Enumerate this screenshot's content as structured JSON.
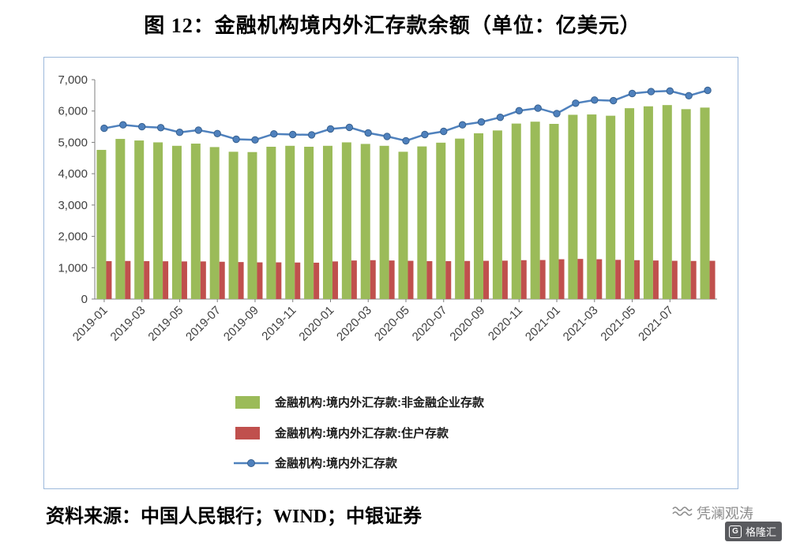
{
  "title": "图 12：金融机构境内外汇存款余额（单位：亿美元）",
  "source_note": "资料来源：中国人民银行；WIND；中银证券",
  "watermark": {
    "text": "凭澜观涛",
    "logo_text": "格隆汇",
    "logo_letter": "G"
  },
  "colors": {
    "green": "#9BBB59",
    "red": "#C0504D",
    "blue": "#4F81BD",
    "axis": "#7f7f7f",
    "border": "#9DB9DC"
  },
  "chart_data": {
    "type": "combo_bar_line",
    "title": "图 12：金融机构境内外汇存款余额（单位：亿美元）",
    "xlabel": "",
    "ylabel": "",
    "ylim": [
      0,
      7000
    ],
    "yticks": [
      0,
      1000,
      2000,
      3000,
      4000,
      5000,
      6000,
      7000
    ],
    "grid": false,
    "legend_position": "bottom",
    "x_tick_every": 2,
    "x_tick_labels": [
      "2019-01",
      "2019-03",
      "2019-05",
      "2019-07",
      "2019-09",
      "2019-11",
      "2020-01",
      "2020-03",
      "2020-05",
      "2020-07",
      "2020-09",
      "2020-11",
      "2021-01",
      "2021-03",
      "2021-05",
      "2021-07"
    ],
    "categories": [
      "2019-01",
      "2019-02",
      "2019-03",
      "2019-04",
      "2019-05",
      "2019-06",
      "2019-07",
      "2019-08",
      "2019-09",
      "2019-10",
      "2019-11",
      "2019-12",
      "2020-01",
      "2020-02",
      "2020-03",
      "2020-04",
      "2020-05",
      "2020-06",
      "2020-07",
      "2020-08",
      "2020-09",
      "2020-10",
      "2020-11",
      "2020-12",
      "2021-01",
      "2021-02",
      "2021-03",
      "2021-04",
      "2021-05",
      "2021-06",
      "2021-07",
      "2021-08",
      "2021-09"
    ],
    "series": [
      {
        "name": "金融机构:境内外汇存款:非金融企业存款",
        "kind": "bar",
        "color": "#9BBB59",
        "values": [
          4760,
          5110,
          5060,
          5000,
          4890,
          4960,
          4850,
          4700,
          4690,
          4860,
          4890,
          4860,
          4890,
          5000,
          4950,
          4890,
          4700,
          4870,
          4990,
          5120,
          5290,
          5380,
          5600,
          5660,
          5590,
          5880,
          5890,
          5850,
          6090,
          6150,
          6190,
          6060,
          6110
        ]
      },
      {
        "name": "金融机构:境内外汇存款:住户存款",
        "kind": "bar",
        "color": "#C0504D",
        "values": [
          1210,
          1215,
          1210,
          1205,
          1200,
          1200,
          1190,
          1180,
          1170,
          1170,
          1165,
          1160,
          1200,
          1230,
          1240,
          1230,
          1220,
          1210,
          1210,
          1215,
          1220,
          1225,
          1240,
          1245,
          1270,
          1280,
          1270,
          1250,
          1240,
          1230,
          1220,
          1215,
          1220
        ]
      },
      {
        "name": "金融机构:境内外汇存款",
        "kind": "line",
        "color": "#4F81BD",
        "values": [
          5450,
          5560,
          5500,
          5470,
          5320,
          5390,
          5280,
          5100,
          5080,
          5270,
          5250,
          5240,
          5430,
          5480,
          5300,
          5190,
          5050,
          5250,
          5350,
          5560,
          5650,
          5800,
          6010,
          6090,
          5920,
          6250,
          6350,
          6330,
          6560,
          6620,
          6640,
          6490,
          6660
        ]
      }
    ]
  }
}
